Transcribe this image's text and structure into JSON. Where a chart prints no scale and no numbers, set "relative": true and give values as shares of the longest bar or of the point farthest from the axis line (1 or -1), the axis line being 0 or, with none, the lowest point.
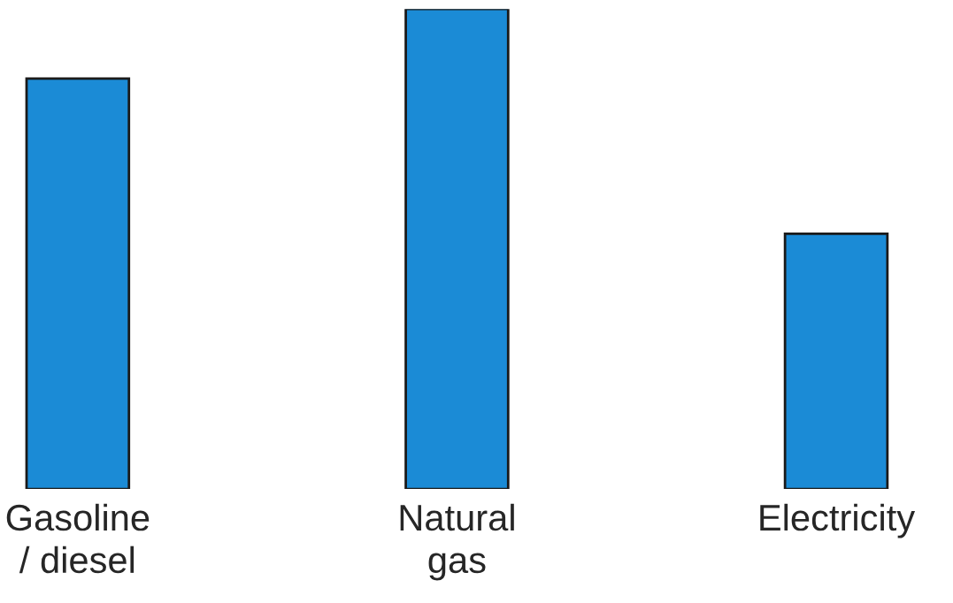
{
  "chart_data": {
    "type": "bar",
    "relative": true,
    "categories": [
      "Gasoline\n/ diesel",
      "Natural\ngas",
      "Electricity"
    ],
    "values": [
      0.855,
      1,
      0.532
    ],
    "color": "#1b8bd6"
  }
}
